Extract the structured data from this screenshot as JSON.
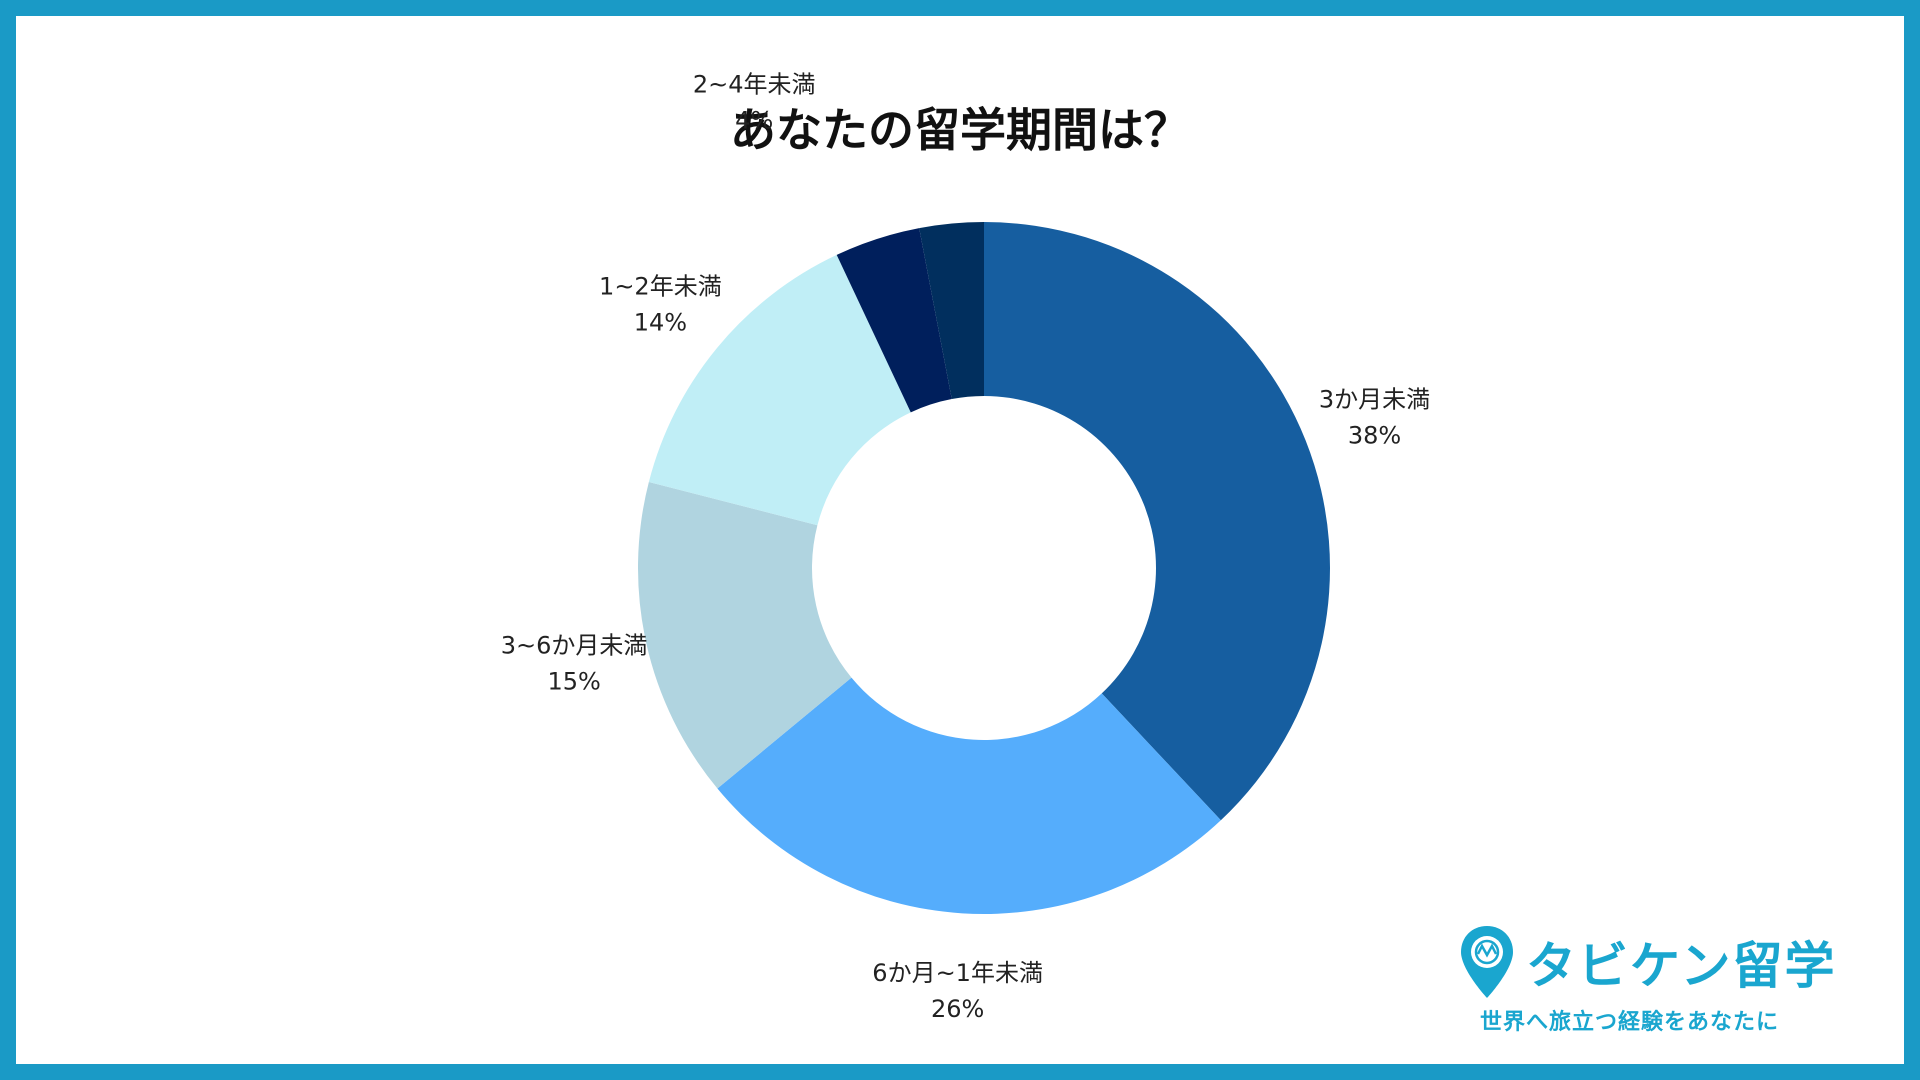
{
  "chart_data": {
    "type": "pie",
    "title": "あなたの留学期間は？",
    "donut": true,
    "categories": [
      "3か月未満",
      "6か月~1年未満",
      "3~6か月未満",
      "1~2年未満",
      "2~4年未満",
      ""
    ],
    "values": [
      38,
      26,
      15,
      14,
      4,
      3
    ],
    "labels": [
      "38%",
      "26%",
      "15%",
      "14%",
      "4%",
      ""
    ],
    "colors": [
      "#165ea0",
      "#55adfc",
      "#b0d4e0",
      "#c0eef6",
      "#001f5c",
      "#012f5e"
    ],
    "legend": "none"
  },
  "brand": {
    "name": "タビケン留学",
    "tagline": "世界へ旅立つ経験をあなたに",
    "color": "#1aa6cf"
  }
}
